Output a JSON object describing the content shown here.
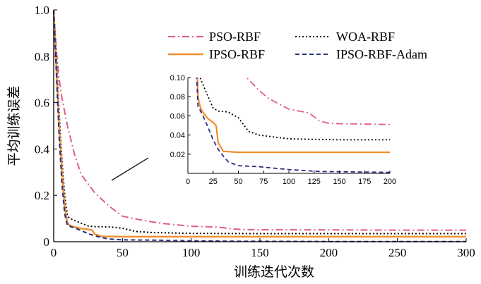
{
  "chart_data": {
    "type": "line",
    "xlabel": "训练迭代次数",
    "ylabel": "平均训练误差",
    "xlim": [
      0,
      300
    ],
    "ylim": [
      0,
      1.0
    ],
    "x_ticks": [
      "0",
      "50",
      "100",
      "150",
      "200",
      "250",
      "300"
    ],
    "y_ticks": [
      "0",
      "0.2",
      "0.4",
      "0.6",
      "0.8",
      "1.0"
    ],
    "legend_placement": "top-right",
    "series": [
      {
        "name": "PSO-RBF",
        "color": "#e05a95",
        "dash": "dashdot",
        "x": [
          0,
          2,
          4,
          6,
          8,
          10,
          15,
          20,
          30,
          40,
          50,
          60,
          70,
          80,
          100,
          120,
          130,
          140,
          200,
          250,
          300
        ],
        "y": [
          1.0,
          0.82,
          0.7,
          0.62,
          0.56,
          0.5,
          0.38,
          0.29,
          0.21,
          0.155,
          0.11,
          0.098,
          0.087,
          0.078,
          0.067,
          0.063,
          0.055,
          0.052,
          0.051,
          0.05,
          0.05
        ]
      },
      {
        "name": "WOA-RBF",
        "color": "#000000",
        "dash": "dotted",
        "x": [
          0,
          2,
          4,
          6,
          8,
          10,
          12,
          14,
          20,
          25,
          30,
          40,
          50,
          60,
          70,
          100,
          150,
          200,
          250,
          300
        ],
        "y": [
          1.0,
          0.8,
          0.55,
          0.35,
          0.2,
          0.11,
          0.1,
          0.095,
          0.08,
          0.068,
          0.065,
          0.064,
          0.058,
          0.044,
          0.04,
          0.036,
          0.035,
          0.035,
          0.035,
          0.035
        ]
      },
      {
        "name": "IPSO-RBF",
        "color": "#ef8e2e",
        "dash": "solid",
        "x": [
          0,
          2,
          4,
          6,
          8,
          10,
          12,
          14,
          20,
          25,
          28,
          30,
          35,
          50,
          100,
          200,
          300
        ],
        "y": [
          1.0,
          0.75,
          0.5,
          0.3,
          0.15,
          0.08,
          0.07,
          0.065,
          0.057,
          0.053,
          0.05,
          0.032,
          0.023,
          0.022,
          0.022,
          0.022,
          0.022
        ]
      },
      {
        "name": "IPSO-RBF-Adam",
        "color": "#2a2e82",
        "dash": "dashed",
        "x": [
          0,
          2,
          4,
          6,
          8,
          10,
          12,
          15,
          20,
          25,
          30,
          35,
          40,
          50,
          70,
          100,
          130,
          200,
          300
        ],
        "y": [
          1.0,
          0.72,
          0.45,
          0.25,
          0.12,
          0.07,
          0.066,
          0.06,
          0.048,
          0.035,
          0.025,
          0.018,
          0.012,
          0.008,
          0.007,
          0.004,
          0.002,
          0.001,
          0.001
        ]
      }
    ],
    "inset": {
      "xlim": [
        0,
        200
      ],
      "ylim": [
        0,
        0.1
      ],
      "x_ticks": [
        "0",
        "25",
        "50",
        "75",
        "100",
        "125",
        "150",
        "175",
        "200"
      ],
      "y_ticks": [
        "0.02",
        "0.04",
        "0.06",
        "0.08",
        "0.10"
      ]
    }
  }
}
